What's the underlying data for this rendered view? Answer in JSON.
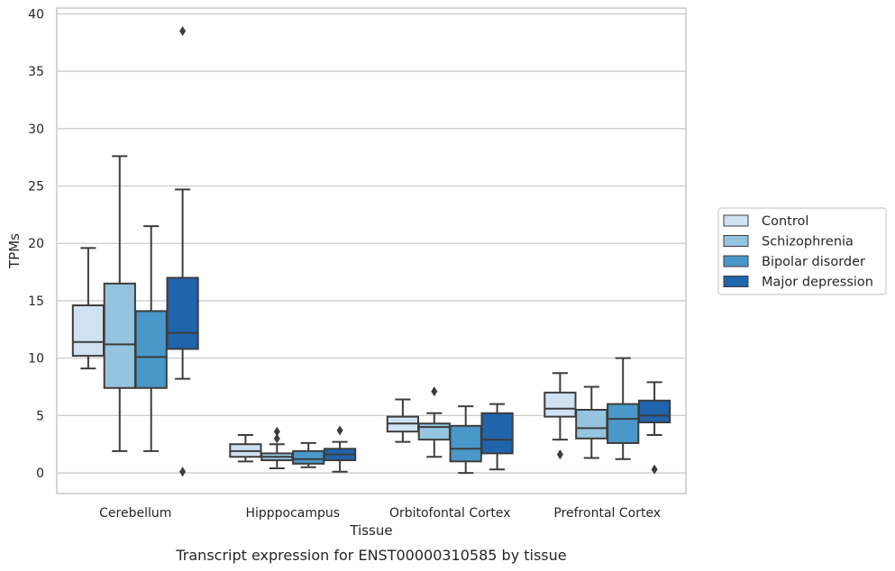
{
  "chart_data": {
    "type": "box",
    "title": "",
    "caption": "Transcript expression for ENST00000310585 by tissue",
    "xlabel": "Tissue",
    "ylabel": "TPMs",
    "ylim": [
      -1.8,
      40.5
    ],
    "yticks": [
      0,
      5,
      10,
      15,
      20,
      25,
      30,
      35,
      40
    ],
    "grid": "horizontal",
    "legend_position": "right",
    "categories": [
      "Cerebellum",
      "Hipppocampus",
      "Orbitofontal Cortex",
      "Prefrontal Cortex"
    ],
    "series": [
      {
        "name": "Control",
        "color": "#d0e1f2",
        "boxes": [
          {
            "whislo": 9.1,
            "q1": 10.2,
            "med": 11.4,
            "q3": 14.6,
            "whishi": 19.6,
            "fliers": []
          },
          {
            "whislo": 1.0,
            "q1": 1.4,
            "med": 1.9,
            "q3": 2.5,
            "whishi": 3.3,
            "fliers": []
          },
          {
            "whislo": 2.7,
            "q1": 3.6,
            "med": 4.3,
            "q3": 4.9,
            "whishi": 6.4,
            "fliers": []
          },
          {
            "whislo": 2.9,
            "q1": 4.9,
            "med": 5.6,
            "q3": 7.0,
            "whishi": 8.7,
            "fliers": [
              1.6
            ]
          }
        ]
      },
      {
        "name": "Schizophrenia",
        "color": "#94c4df",
        "boxes": [
          {
            "whislo": 1.9,
            "q1": 7.4,
            "med": 11.2,
            "q3": 16.5,
            "whishi": 27.6,
            "fliers": []
          },
          {
            "whislo": 0.4,
            "q1": 1.1,
            "med": 1.4,
            "q3": 1.7,
            "whishi": 2.5,
            "fliers": [
              3.0,
              3.6
            ]
          },
          {
            "whislo": 1.4,
            "q1": 2.9,
            "med": 4.0,
            "q3": 4.3,
            "whishi": 5.2,
            "fliers": [
              7.1
            ]
          },
          {
            "whislo": 1.3,
            "q1": 3.0,
            "med": 3.9,
            "q3": 5.5,
            "whishi": 7.5,
            "fliers": []
          }
        ]
      },
      {
        "name": "Bipolar disorder",
        "color": "#4a98c9",
        "boxes": [
          {
            "whislo": 1.9,
            "q1": 7.4,
            "med": 10.1,
            "q3": 14.1,
            "whishi": 21.5,
            "fliers": []
          },
          {
            "whislo": 0.5,
            "q1": 0.8,
            "med": 1.2,
            "q3": 1.9,
            "whishi": 2.6,
            "fliers": []
          },
          {
            "whislo": 0.0,
            "q1": 1.0,
            "med": 2.1,
            "q3": 4.1,
            "whishi": 5.8,
            "fliers": []
          },
          {
            "whislo": 1.2,
            "q1": 2.6,
            "med": 4.7,
            "q3": 6.0,
            "whishi": 10.0,
            "fliers": []
          }
        ]
      },
      {
        "name": "Major depression",
        "color": "#2064ab",
        "boxes": [
          {
            "whislo": 8.2,
            "q1": 10.8,
            "med": 12.2,
            "q3": 17.0,
            "whishi": 24.7,
            "fliers": [
              0.1,
              38.5
            ]
          },
          {
            "whislo": 0.1,
            "q1": 1.1,
            "med": 1.6,
            "q3": 2.1,
            "whishi": 2.7,
            "fliers": [
              3.7
            ]
          },
          {
            "whislo": 0.3,
            "q1": 1.7,
            "med": 2.9,
            "q3": 5.2,
            "whishi": 6.0,
            "fliers": []
          },
          {
            "whislo": 3.3,
            "q1": 4.4,
            "med": 5.0,
            "q3": 6.3,
            "whishi": 7.9,
            "fliers": [
              0.3
            ]
          }
        ]
      }
    ]
  }
}
